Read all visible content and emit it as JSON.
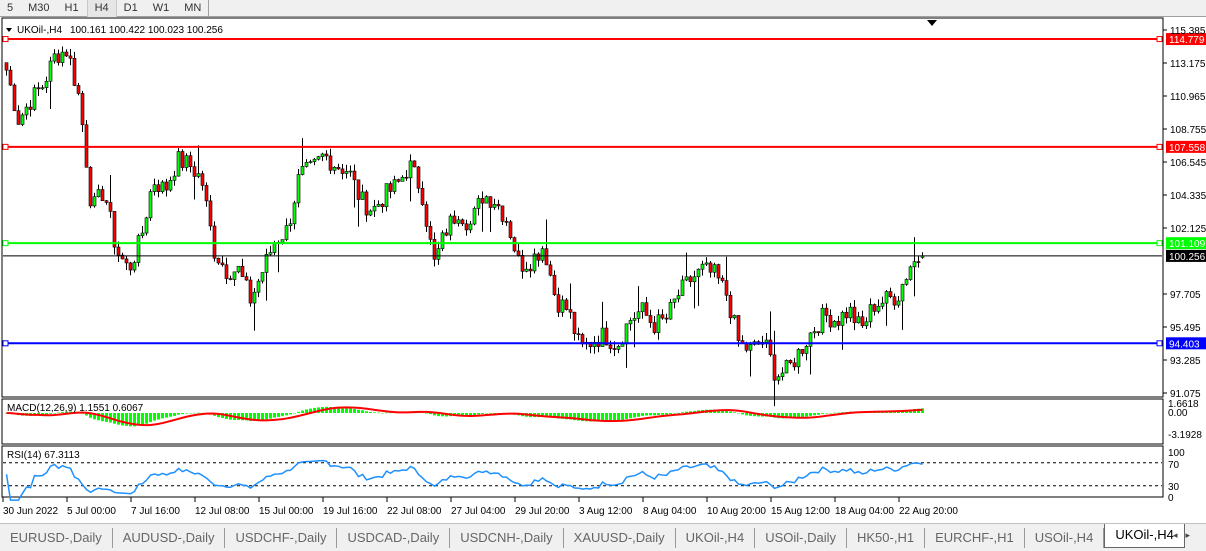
{
  "toolbar": {
    "timeframes": [
      "5",
      "M30",
      "H1",
      "H4",
      "D1",
      "W1",
      "MN"
    ],
    "active": "H4"
  },
  "chart": {
    "title": "UKOil-,H4",
    "ohlc": "100.161 100.422 100.023 100.256",
    "price_ticks": [
      "115.385",
      "113.175",
      "110.965",
      "108.755",
      "106.545",
      "104.335",
      "102.125",
      "97.705",
      "95.495",
      "93.285",
      "91.075"
    ],
    "price_range": [
      91.075,
      115.385
    ],
    "hlines": [
      {
        "price": 114.779,
        "label": "114.779",
        "color": "#ff0000"
      },
      {
        "price": 107.558,
        "label": "107.558",
        "color": "#ff0000"
      },
      {
        "price": 101.109,
        "label": "101.109",
        "color": "#00ff00"
      },
      {
        "price": 94.403,
        "label": "94.403",
        "color": "#0000ff"
      }
    ],
    "current_price": {
      "price": 100.256,
      "label": "100.256"
    },
    "colors": {
      "bull": "#00ff00",
      "bear": "#ff0000",
      "outline": "#000000"
    },
    "close_path": [
      112.71,
      109.36,
      110.7,
      111.7,
      113.71,
      114.05,
      110.7,
      103.33,
      104.67,
      100.65,
      99.31,
      101.32,
      105.34,
      104.67,
      106.68,
      106.34,
      105.34,
      100.65,
      99.31,
      99.31,
      97.3,
      99.31,
      101.32,
      101.99,
      105.67,
      106.01,
      107.01,
      106.34,
      106.01,
      104.0,
      103.33,
      104.34,
      105.0,
      106.34,
      104.67,
      99.65,
      101.99,
      103.33,
      102.33,
      104.34,
      104.0,
      102.66,
      99.65,
      99.98,
      100.99,
      97.3,
      96.63,
      93.95,
      94.62,
      94.96,
      94.29,
      95.96,
      96.63,
      95.63,
      95.96,
      97.64,
      98.64,
      99.31,
      98.98,
      97.64,
      94.29,
      93.95,
      94.62,
      92.28,
      92.62,
      93.95,
      95.29,
      96.3,
      95.96,
      96.63,
      95.29,
      96.97,
      97.3,
      97.64,
      99.65,
      100.256
    ]
  },
  "macd": {
    "label": "MACD(12,26,9) 1.1551 0.6067",
    "ticks": [
      "1.6618",
      "0.00",
      "-3.1928"
    ],
    "hist_color": "#00ff00",
    "signal_color": "#ff0000"
  },
  "rsi": {
    "label": "RSI(14) 67.3113",
    "ticks": [
      "100",
      "70",
      "30",
      "0"
    ],
    "line_color": "#1e90ff"
  },
  "time_axis": [
    "30 Jun 2022",
    "5 Jul 00:00",
    "7 Jul 16:00",
    "12 Jul 08:00",
    "15 Jul 00:00",
    "19 Jul 16:00",
    "22 Jul 08:00",
    "27 Jul 04:00",
    "29 Jul 20:00",
    "3 Aug 12:00",
    "8 Aug 04:00",
    "10 Aug 20:00",
    "15 Aug 12:00",
    "18 Aug 04:00",
    "22 Aug 20:00"
  ],
  "tabs": [
    "EURUSD-,Daily",
    "AUDUSD-,Daily",
    "USDCHF-,Daily",
    "USDCAD-,Daily",
    "USDCNH-,Daily",
    "XAUUSD-,Daily",
    "UKOil-,H4",
    "USOil-,Daily",
    "HK50-,H1",
    "EURCHF-,H1",
    "USOil-,H4",
    "UKOil-,H4"
  ],
  "active_tab": "UKOil-,H4"
}
